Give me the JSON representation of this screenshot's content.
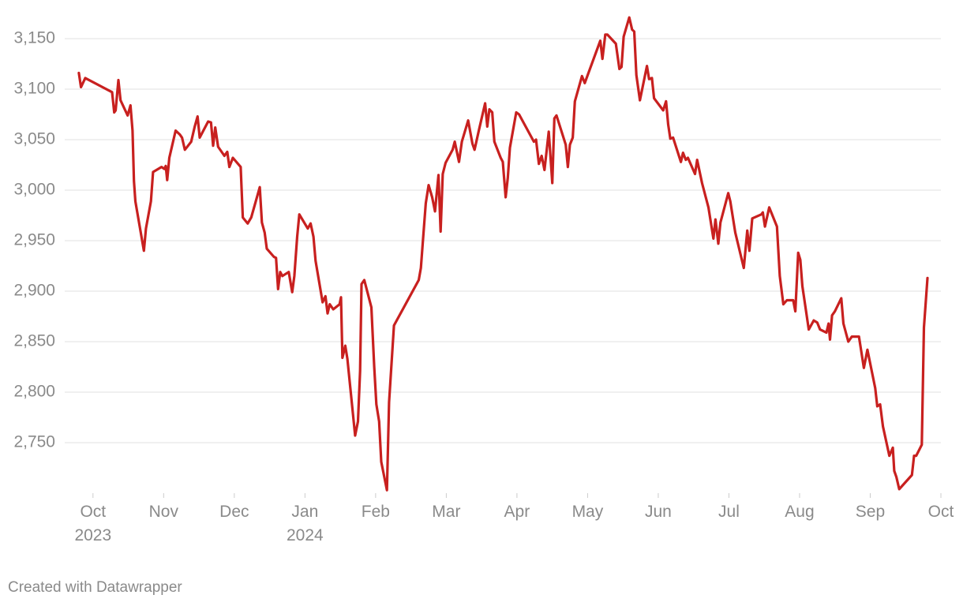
{
  "chart_data": {
    "type": "line",
    "series": [
      {
        "color": "#c8201f",
        "x": [
          -0.2,
          -0.17,
          -0.11,
          0.27,
          0.3,
          0.32,
          0.36,
          0.39,
          0.49,
          0.53,
          0.56,
          0.58,
          0.6,
          0.72,
          0.75,
          0.82,
          0.85,
          0.97,
          1.01,
          1.03,
          1.05,
          1.08,
          1.17,
          1.23,
          1.26,
          1.3,
          1.39,
          1.44,
          1.48,
          1.51,
          1.63,
          1.67,
          1.7,
          1.73,
          1.77,
          1.86,
          1.9,
          1.93,
          1.98,
          2.09,
          2.12,
          2.19,
          2.24,
          2.36,
          2.39,
          2.43,
          2.46,
          2.56,
          2.59,
          2.62,
          2.65,
          2.68,
          2.77,
          2.82,
          2.85,
          2.89,
          2.92,
          3.04,
          3.08,
          3.12,
          3.15,
          3.25,
          3.29,
          3.32,
          3.35,
          3.4,
          3.49,
          3.51,
          3.53,
          3.57,
          3.6,
          3.71,
          3.75,
          3.78,
          3.8,
          3.84,
          3.94,
          3.98,
          4.01,
          4.05,
          4.08,
          4.16,
          4.19,
          4.26,
          4.61,
          4.64,
          4.67,
          4.71,
          4.75,
          4.8,
          4.84,
          4.89,
          4.92,
          4.95,
          4.99,
          5.09,
          5.12,
          5.18,
          5.22,
          5.31,
          5.37,
          5.4,
          5.46,
          5.55,
          5.58,
          5.61,
          5.65,
          5.68,
          5.77,
          5.8,
          5.84,
          5.87,
          5.9,
          5.99,
          6.03,
          6.24,
          6.27,
          6.31,
          6.35,
          6.39,
          6.45,
          6.5,
          6.53,
          6.56,
          6.69,
          6.72,
          6.75,
          6.79,
          6.82,
          6.92,
          6.96,
          7.18,
          7.21,
          7.25,
          7.28,
          7.4,
          7.45,
          7.48,
          7.51,
          7.59,
          7.63,
          7.66,
          7.69,
          7.74,
          7.84,
          7.87,
          7.91,
          7.94,
          8.07,
          8.11,
          8.14,
          8.17,
          8.21,
          8.32,
          8.35,
          8.39,
          8.42,
          8.52,
          8.55,
          8.62,
          8.71,
          8.78,
          8.81,
          8.85,
          8.88,
          8.99,
          9.02,
          9.09,
          9.21,
          9.26,
          9.29,
          9.33,
          9.46,
          9.48,
          9.51,
          9.57,
          9.68,
          9.72,
          9.77,
          9.82,
          9.91,
          9.94,
          9.98,
          10.01,
          10.04,
          10.13,
          10.2,
          10.25,
          10.29,
          10.38,
          10.41,
          10.43,
          10.46,
          10.5,
          10.59,
          10.62,
          10.69,
          10.74,
          10.84,
          10.91,
          10.96,
          11.07,
          11.1,
          11.14,
          11.18,
          11.27,
          11.32,
          11.34,
          11.37,
          11.41,
          11.59,
          11.62,
          11.65,
          11.73,
          11.76,
          11.81
        ],
        "values": [
          3116,
          3102,
          3111,
          3097,
          3077,
          3079,
          3109,
          3089,
          3074,
          3084,
          3059,
          3009,
          2989,
          2940,
          2962,
          2989,
          3018,
          3023,
          3021,
          3024,
          3010,
          3032,
          3059,
          3055,
          3052,
          3040,
          3048,
          3063,
          3073,
          3052,
          3068,
          3067,
          3044,
          3062,
          3043,
          3034,
          3038,
          3023,
          3032,
          3023,
          2973,
          2967,
          2973,
          3003,
          2968,
          2958,
          2942,
          2934,
          2933,
          2902,
          2919,
          2915,
          2919,
          2899,
          2915,
          2954,
          2976,
          2962,
          2967,
          2954,
          2930,
          2889,
          2895,
          2878,
          2887,
          2882,
          2887,
          2894,
          2834,
          2846,
          2833,
          2757,
          2771,
          2821,
          2907,
          2911,
          2884,
          2825,
          2788,
          2771,
          2731,
          2703,
          2790,
          2866,
          2911,
          2923,
          2950,
          2987,
          3005,
          2993,
          2979,
          3015,
          2959,
          3016,
          3027,
          3040,
          3048,
          3028,
          3048,
          3069,
          3046,
          3040,
          3059,
          3086,
          3063,
          3080,
          3077,
          3048,
          3032,
          3028,
          2993,
          3012,
          3042,
          3077,
          3075,
          3048,
          3050,
          3026,
          3034,
          3020,
          3058,
          3007,
          3071,
          3074,
          3045,
          3023,
          3045,
          3052,
          3088,
          3113,
          3106,
          3148,
          3130,
          3154,
          3154,
          3145,
          3120,
          3122,
          3152,
          3171,
          3159,
          3157,
          3114,
          3089,
          3123,
          3110,
          3111,
          3091,
          3079,
          3088,
          3065,
          3051,
          3052,
          3028,
          3037,
          3030,
          3032,
          3016,
          3030,
          3007,
          2983,
          2952,
          2971,
          2947,
          2968,
          2997,
          2989,
          2958,
          2923,
          2960,
          2940,
          2972,
          2976,
          2978,
          2964,
          2983,
          2964,
          2915,
          2887,
          2891,
          2891,
          2880,
          2938,
          2931,
          2905,
          2862,
          2871,
          2869,
          2862,
          2859,
          2868,
          2852,
          2876,
          2880,
          2893,
          2868,
          2850,
          2855,
          2855,
          2824,
          2842,
          2804,
          2786,
          2788,
          2766,
          2737,
          2745,
          2722,
          2716,
          2704,
          2718,
          2737,
          2737,
          2748,
          2864,
          2913
        ]
      }
    ],
    "xlim": [
      -0.4,
      12.0
    ],
    "xticks": [
      {
        "value": 0,
        "label": "Oct\n2023"
      },
      {
        "value": 1,
        "label": "Nov"
      },
      {
        "value": 2,
        "label": "Dec"
      },
      {
        "value": 3,
        "label": "Jan\n2024"
      },
      {
        "value": 4,
        "label": "Feb"
      },
      {
        "value": 5,
        "label": "Mar"
      },
      {
        "value": 6,
        "label": "Apr"
      },
      {
        "value": 7,
        "label": "May"
      },
      {
        "value": 8,
        "label": "Jun"
      },
      {
        "value": 9,
        "label": "Jul"
      },
      {
        "value": 10,
        "label": "Aug"
      },
      {
        "value": 11,
        "label": "Sep"
      },
      {
        "value": 12,
        "label": "Oct"
      }
    ],
    "ylim": [
      2700,
      3170
    ],
    "yticks": [
      {
        "value": 2750,
        "label": "2,750"
      },
      {
        "value": 2800,
        "label": "2,800"
      },
      {
        "value": 2850,
        "label": "2,850"
      },
      {
        "value": 2900,
        "label": "2,900"
      },
      {
        "value": 2950,
        "label": "2,950"
      },
      {
        "value": 3000,
        "label": "3,000"
      },
      {
        "value": 3050,
        "label": "3,050"
      },
      {
        "value": 3100,
        "label": "3,100"
      },
      {
        "value": 3150,
        "label": "3,150"
      }
    ],
    "grid": true,
    "credit": "Created with Datawrapper"
  }
}
